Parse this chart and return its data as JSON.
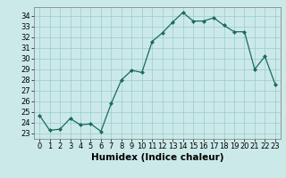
{
  "x": [
    0,
    1,
    2,
    3,
    4,
    5,
    6,
    7,
    8,
    9,
    10,
    11,
    12,
    13,
    14,
    15,
    16,
    17,
    18,
    19,
    20,
    21,
    22,
    23
  ],
  "y": [
    24.7,
    23.3,
    23.4,
    24.4,
    23.8,
    23.9,
    23.2,
    25.8,
    28.0,
    28.9,
    28.7,
    31.6,
    32.4,
    33.4,
    34.3,
    33.5,
    33.5,
    33.8,
    33.1,
    32.5,
    32.5,
    29.0,
    30.2,
    27.6
  ],
  "xlabel": "Humidex (Indice chaleur)",
  "ylim": [
    22.5,
    34.8
  ],
  "xlim": [
    -0.5,
    23.5
  ],
  "yticks": [
    23,
    24,
    25,
    26,
    27,
    28,
    29,
    30,
    31,
    32,
    33,
    34
  ],
  "xticks": [
    0,
    1,
    2,
    3,
    4,
    5,
    6,
    7,
    8,
    9,
    10,
    11,
    12,
    13,
    14,
    15,
    16,
    17,
    18,
    19,
    20,
    21,
    22,
    23
  ],
  "line_color": "#1a6b5a",
  "marker": "D",
  "marker_size": 2.0,
  "bg_color": "#cce9e9",
  "grid_color": "#99cccc",
  "tick_fontsize": 6,
  "xlabel_fontsize": 7.5
}
